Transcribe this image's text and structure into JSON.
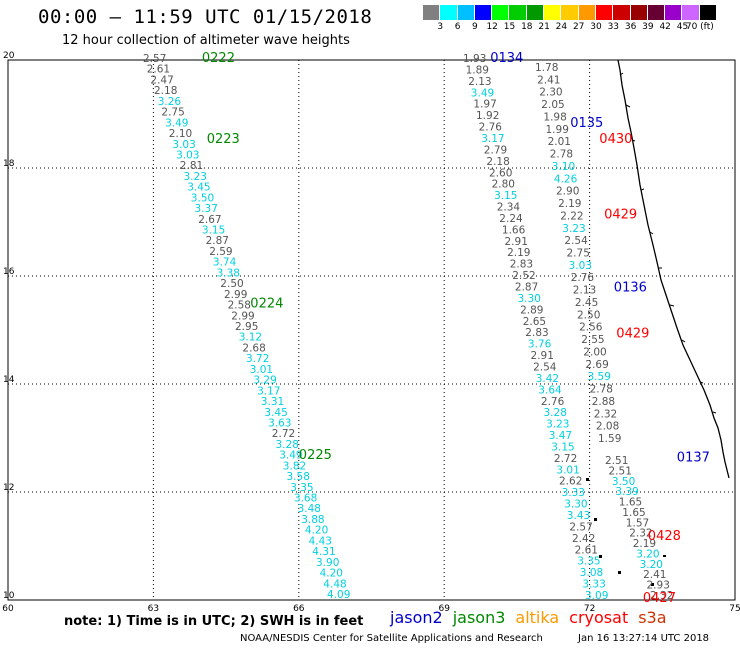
{
  "header": {
    "title": "00:00 – 11:59 UTC 01/15/2018",
    "subtitle": "12 hour collection of altimeter wave heights"
  },
  "colorbar": {
    "colors": [
      "#808080",
      "#00ffff",
      "#00bfff",
      "#0000ff",
      "#00ff00",
      "#00cc00",
      "#009900",
      "#ffff00",
      "#ffcc00",
      "#ff9900",
      "#ff0000",
      "#cc0000",
      "#990000",
      "#660033",
      "#9900cc",
      "#cc66ff",
      "#000000"
    ],
    "labels": [
      "3",
      "6",
      "9",
      "12",
      "15",
      "18",
      "21",
      "24",
      "27",
      "30",
      "33",
      "36",
      "39",
      "42",
      "45",
      "70 (ft)"
    ]
  },
  "axes": {
    "lon_ticks": [
      "60",
      "63",
      "66",
      "69",
      "72",
      "75"
    ],
    "lat_ticks": [
      "10",
      "12",
      "14",
      "16",
      "18",
      "20"
    ]
  },
  "footer": {
    "note": "note:  1) Time is in UTC;  2) SWH is in feet",
    "legend": [
      {
        "name": "jason2",
        "color": "#0000cc"
      },
      {
        "name": "jason3",
        "color": "#008800"
      },
      {
        "name": "altika",
        "color": "#ff9900"
      },
      {
        "name": "cryosat",
        "color": "#ff0000"
      },
      {
        "name": "s3a",
        "color": "#cc3300"
      }
    ],
    "credit": "NOAA/NESDIS Center for Satellite Applications and Research",
    "timestamp": "Jan 16 13:27:14 UTC 2018"
  },
  "colors": {
    "grey": "#555555",
    "cyan": "#00d0e0",
    "green": "#008800",
    "blue": "#0000cc",
    "red": "#ff0000"
  },
  "chart_data": {
    "type": "scatter",
    "xlim": [
      60,
      75
    ],
    "ylim": [
      10,
      20
    ],
    "pass_labels": [
      {
        "t": "0222",
        "lon": 64.0,
        "lat": 20.0,
        "c": "green"
      },
      {
        "t": "0223",
        "lon": 64.1,
        "lat": 18.5,
        "c": "green"
      },
      {
        "t": "0224",
        "lon": 65.0,
        "lat": 15.45,
        "c": "green"
      },
      {
        "t": "0225",
        "lon": 66.0,
        "lat": 12.65,
        "c": "green"
      },
      {
        "t": "0134",
        "lon": 69.95,
        "lat": 20.0,
        "c": "blue"
      },
      {
        "t": "0135",
        "lon": 71.6,
        "lat": 18.8,
        "c": "blue"
      },
      {
        "t": "0136",
        "lon": 72.5,
        "lat": 15.75,
        "c": "blue"
      },
      {
        "t": "0137",
        "lon": 73.8,
        "lat": 12.6,
        "c": "blue"
      },
      {
        "t": "0430",
        "lon": 72.2,
        "lat": 18.5,
        "c": "red"
      },
      {
        "t": "0429",
        "lon": 72.3,
        "lat": 17.1,
        "c": "red"
      },
      {
        "t": "0429",
        "lon": 72.55,
        "lat": 14.9,
        "c": "red"
      },
      {
        "t": "0428",
        "lon": 73.2,
        "lat": 11.15,
        "c": "red"
      },
      {
        "t": "0427",
        "lon": 73.1,
        "lat": 10.0,
        "c": "red"
      }
    ],
    "track1": [
      {
        "v": "2.57",
        "c": "grey"
      },
      {
        "v": "2.61",
        "c": "grey"
      },
      {
        "v": "2.47",
        "c": "grey"
      },
      {
        "v": "2.18",
        "c": "grey"
      },
      {
        "v": "3.26",
        "c": "cyan"
      },
      {
        "v": "2.75",
        "c": "grey"
      },
      {
        "v": "3.49",
        "c": "cyan"
      },
      {
        "v": "2.10",
        "c": "grey"
      },
      {
        "v": "3.03",
        "c": "cyan"
      },
      {
        "v": "3.03",
        "c": "cyan"
      },
      {
        "v": "2.81",
        "c": "grey"
      },
      {
        "v": "3.23",
        "c": "cyan"
      },
      {
        "v": "3.45",
        "c": "cyan"
      },
      {
        "v": "3.50",
        "c": "cyan"
      },
      {
        "v": "3.37",
        "c": "cyan"
      },
      {
        "v": "2.67",
        "c": "grey"
      },
      {
        "v": "3.15",
        "c": "cyan"
      },
      {
        "v": "2.87",
        "c": "grey"
      },
      {
        "v": "2.59",
        "c": "grey"
      },
      {
        "v": "3.74",
        "c": "cyan"
      },
      {
        "v": "3.38",
        "c": "cyan"
      },
      {
        "v": "2.50",
        "c": "grey"
      },
      {
        "v": "2.99",
        "c": "grey"
      },
      {
        "v": "2.58",
        "c": "grey"
      },
      {
        "v": "2.99",
        "c": "grey"
      },
      {
        "v": "2.95",
        "c": "grey"
      },
      {
        "v": "3.12",
        "c": "cyan"
      },
      {
        "v": "2.68",
        "c": "grey"
      },
      {
        "v": "3.72",
        "c": "cyan"
      },
      {
        "v": "3.01",
        "c": "cyan"
      },
      {
        "v": "3.29",
        "c": "cyan"
      },
      {
        "v": "3.17",
        "c": "cyan"
      },
      {
        "v": "3.31",
        "c": "cyan"
      },
      {
        "v": "3.45",
        "c": "cyan"
      },
      {
        "v": "3.63",
        "c": "cyan"
      },
      {
        "v": "2.72",
        "c": "grey"
      },
      {
        "v": "3.28",
        "c": "cyan"
      },
      {
        "v": "3.49",
        "c": "cyan"
      },
      {
        "v": "3.82",
        "c": "cyan"
      },
      {
        "v": "3.58",
        "c": "cyan"
      },
      {
        "v": "3.35",
        "c": "cyan"
      },
      {
        "v": "3.68",
        "c": "cyan"
      },
      {
        "v": "3.48",
        "c": "cyan"
      },
      {
        "v": "3.88",
        "c": "cyan"
      },
      {
        "v": "4.20",
        "c": "cyan"
      },
      {
        "v": "4.43",
        "c": "cyan"
      },
      {
        "v": "4.31",
        "c": "cyan"
      },
      {
        "v": "3.90",
        "c": "cyan"
      },
      {
        "v": "4.20",
        "c": "cyan"
      },
      {
        "v": "4.48",
        "c": "cyan"
      },
      {
        "v": "4.09",
        "c": "cyan"
      }
    ],
    "track2": [
      {
        "v": "1.93",
        "c": "grey"
      },
      {
        "v": "1.89",
        "c": "grey"
      },
      {
        "v": "2.13",
        "c": "grey"
      },
      {
        "v": "3.49",
        "c": "cyan"
      },
      {
        "v": "1.97",
        "c": "grey"
      },
      {
        "v": "1.92",
        "c": "grey"
      },
      {
        "v": "2.76",
        "c": "grey"
      },
      {
        "v": "3.17",
        "c": "cyan"
      },
      {
        "v": "2.79",
        "c": "grey"
      },
      {
        "v": "2.18",
        "c": "grey"
      },
      {
        "v": "2.60",
        "c": "grey"
      },
      {
        "v": "2.80",
        "c": "grey"
      },
      {
        "v": "3.15",
        "c": "cyan"
      },
      {
        "v": "2.34",
        "c": "grey"
      },
      {
        "v": "2.24",
        "c": "grey"
      },
      {
        "v": "1.66",
        "c": "grey"
      },
      {
        "v": "2.91",
        "c": "grey"
      },
      {
        "v": "2.19",
        "c": "grey"
      },
      {
        "v": "2.83",
        "c": "grey"
      },
      {
        "v": "2.52",
        "c": "grey"
      },
      {
        "v": "2.87",
        "c": "grey"
      },
      {
        "v": "3.30",
        "c": "cyan"
      },
      {
        "v": "2.89",
        "c": "grey"
      },
      {
        "v": "2.65",
        "c": "grey"
      },
      {
        "v": "2.83",
        "c": "grey"
      },
      {
        "v": "3.76",
        "c": "cyan"
      },
      {
        "v": "2.91",
        "c": "grey"
      },
      {
        "v": "2.54",
        "c": "grey"
      },
      {
        "v": "3.42",
        "c": "cyan"
      },
      {
        "v": "3.64",
        "c": "cyan"
      },
      {
        "v": "2.76",
        "c": "grey"
      },
      {
        "v": "3.28",
        "c": "cyan"
      },
      {
        "v": "3.23",
        "c": "cyan"
      },
      {
        "v": "3.47",
        "c": "cyan"
      },
      {
        "v": "3.15",
        "c": "cyan"
      },
      {
        "v": "2.72",
        "c": "grey"
      },
      {
        "v": "3.01",
        "c": "cyan"
      },
      {
        "v": "2.62",
        "c": "grey"
      },
      {
        "v": "3.33",
        "c": "cyan"
      },
      {
        "v": "3.30",
        "c": "cyan"
      },
      {
        "v": "3.43",
        "c": "cyan"
      },
      {
        "v": "2.57",
        "c": "grey"
      },
      {
        "v": "2.42",
        "c": "grey"
      },
      {
        "v": "2.61",
        "c": "grey"
      },
      {
        "v": "3.35",
        "c": "cyan"
      },
      {
        "v": "3.08",
        "c": "cyan"
      },
      {
        "v": "3.33",
        "c": "cyan"
      },
      {
        "v": "3.09",
        "c": "cyan"
      }
    ],
    "track3": [
      {
        "v": "1.78",
        "c": "grey"
      },
      {
        "v": "2.41",
        "c": "grey"
      },
      {
        "v": "2.30",
        "c": "grey"
      },
      {
        "v": "2.05",
        "c": "grey"
      },
      {
        "v": "1.98",
        "c": "grey"
      },
      {
        "v": "1.99",
        "c": "grey"
      },
      {
        "v": "2.01",
        "c": "grey"
      },
      {
        "v": "2.78",
        "c": "grey"
      },
      {
        "v": "3.10",
        "c": "cyan"
      },
      {
        "v": "4.26",
        "c": "cyan"
      },
      {
        "v": "2.90",
        "c": "grey"
      },
      {
        "v": "2.19",
        "c": "grey"
      },
      {
        "v": "2.22",
        "c": "grey"
      },
      {
        "v": "3.23",
        "c": "cyan"
      },
      {
        "v": "2.54",
        "c": "grey"
      },
      {
        "v": "2.75",
        "c": "grey"
      },
      {
        "v": "3.03",
        "c": "cyan"
      },
      {
        "v": "2.76",
        "c": "grey"
      },
      {
        "v": "2.13",
        "c": "grey"
      },
      {
        "v": "2.45",
        "c": "grey"
      },
      {
        "v": "2.50",
        "c": "grey"
      },
      {
        "v": "2.56",
        "c": "grey"
      },
      {
        "v": "2.55",
        "c": "grey"
      },
      {
        "v": "2.00",
        "c": "grey"
      },
      {
        "v": "2.69",
        "c": "grey"
      },
      {
        "v": "3.59",
        "c": "cyan"
      },
      {
        "v": "2.78",
        "c": "grey"
      },
      {
        "v": "2.88",
        "c": "grey"
      },
      {
        "v": "2.32",
        "c": "grey"
      },
      {
        "v": "2.08",
        "c": "grey"
      },
      {
        "v": "1.59",
        "c": "grey"
      }
    ],
    "track4": [
      {
        "v": "2.51",
        "c": "grey"
      },
      {
        "v": "2.51",
        "c": "grey"
      },
      {
        "v": "3.50",
        "c": "cyan"
      },
      {
        "v": "3.39",
        "c": "cyan"
      },
      {
        "v": "1.65",
        "c": "grey"
      },
      {
        "v": "1.65",
        "c": "grey"
      },
      {
        "v": "1.57",
        "c": "grey"
      },
      {
        "v": "2.32",
        "c": "grey"
      },
      {
        "v": "2.19",
        "c": "grey"
      },
      {
        "v": "3.20",
        "c": "cyan"
      },
      {
        "v": "3.20",
        "c": "cyan"
      },
      {
        "v": "2.41",
        "c": "grey"
      },
      {
        "v": "2.93",
        "c": "grey"
      },
      {
        "v": "2.32",
        "c": "grey"
      }
    ]
  }
}
